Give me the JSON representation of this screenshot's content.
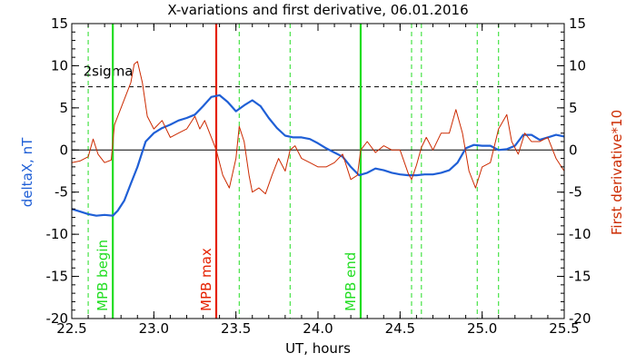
{
  "chart_data": {
    "type": "line",
    "title": "X-variations and first derivative, 06.01.2016",
    "xlabel": "UT, hours",
    "ylabel_left": "deltaX, nT",
    "ylabel_right": "First derivative*10",
    "xlim": [
      22.5,
      25.5
    ],
    "ylim": [
      -20,
      15
    ],
    "x_ticks": [
      22.5,
      23.0,
      23.5,
      24.0,
      24.5,
      25.0,
      25.5
    ],
    "x_tick_labels": [
      "22.5",
      "23.0",
      "23.5",
      "24.0",
      "24.5",
      "25.0",
      "25.5"
    ],
    "y_ticks": [
      15,
      10,
      5,
      0,
      -5,
      -10,
      -15,
      -20
    ],
    "y_tick_labels": [
      "15",
      "10",
      "5",
      "0",
      "-5",
      "-10",
      "-15",
      "-20"
    ],
    "threshold": {
      "label": "2sigma",
      "value": 7.5
    },
    "colors": {
      "deltaX": "#1f5fd6",
      "derivative": "#cc2a00",
      "mpb_begin_end": "#22dd22",
      "mpb_max": "#e52000",
      "dashed_lines": "#22dd22"
    },
    "vertical_markers": [
      {
        "label": "MPB begin",
        "x": 22.75,
        "color": "#22dd22"
      },
      {
        "label": "MPB max",
        "x": 23.38,
        "color": "#e52000"
      },
      {
        "label": "MPB end",
        "x": 24.26,
        "color": "#22dd22"
      }
    ],
    "dashed_verticals": [
      22.6,
      23.52,
      23.83,
      24.57,
      24.63,
      24.97,
      25.1
    ],
    "series": [
      {
        "name": "deltaX",
        "x": [
          22.5,
          22.55,
          22.6,
          22.65,
          22.7,
          22.75,
          22.78,
          22.82,
          22.86,
          22.9,
          22.95,
          23.0,
          23.05,
          23.1,
          23.15,
          23.2,
          23.25,
          23.3,
          23.35,
          23.4,
          23.45,
          23.5,
          23.55,
          23.6,
          23.65,
          23.7,
          23.75,
          23.8,
          23.85,
          23.9,
          23.95,
          24.0,
          24.05,
          24.1,
          24.15,
          24.2,
          24.25,
          24.3,
          24.35,
          24.4,
          24.45,
          24.5,
          24.55,
          24.6,
          24.65,
          24.7,
          24.75,
          24.8,
          24.85,
          24.9,
          24.95,
          25.0,
          25.05,
          25.1,
          25.15,
          25.2,
          25.25,
          25.3,
          25.35,
          25.4,
          25.45,
          25.5
        ],
        "y": [
          -7.0,
          -7.3,
          -7.6,
          -7.8,
          -7.7,
          -7.8,
          -7.2,
          -6.0,
          -4.0,
          -2.0,
          1.0,
          2.0,
          2.6,
          3.0,
          3.5,
          3.8,
          4.2,
          5.2,
          6.3,
          6.5,
          5.7,
          4.6,
          5.3,
          5.9,
          5.2,
          3.8,
          2.6,
          1.7,
          1.5,
          1.5,
          1.3,
          0.8,
          0.2,
          -0.3,
          -0.8,
          -2.0,
          -3.0,
          -2.7,
          -2.2,
          -2.4,
          -2.7,
          -2.9,
          -3.0,
          -3.0,
          -2.9,
          -2.9,
          -2.7,
          -2.4,
          -1.5,
          0.2,
          0.6,
          0.5,
          0.5,
          0.0,
          0.1,
          0.5,
          1.8,
          1.8,
          1.2,
          1.5,
          1.8,
          1.6
        ]
      },
      {
        "name": "First derivative*10",
        "x": [
          22.5,
          22.55,
          22.6,
          22.63,
          22.66,
          22.7,
          22.74,
          22.76,
          22.8,
          22.83,
          22.86,
          22.88,
          22.9,
          22.93,
          22.96,
          23.0,
          23.05,
          23.1,
          23.15,
          23.2,
          23.25,
          23.28,
          23.31,
          23.35,
          23.38,
          23.42,
          23.46,
          23.5,
          23.52,
          23.55,
          23.58,
          23.6,
          23.64,
          23.68,
          23.72,
          23.76,
          23.8,
          23.83,
          23.86,
          23.9,
          23.95,
          24.0,
          24.05,
          24.1,
          24.15,
          24.2,
          24.24,
          24.26,
          24.3,
          24.35,
          24.4,
          24.45,
          24.5,
          24.55,
          24.57,
          24.6,
          24.63,
          24.66,
          24.7,
          24.75,
          24.8,
          24.84,
          24.88,
          24.92,
          24.96,
          25.0,
          25.05,
          25.1,
          25.15,
          25.18,
          25.22,
          25.26,
          25.3,
          25.35,
          25.4,
          25.45,
          25.5
        ],
        "y": [
          -1.5,
          -1.3,
          -0.8,
          1.3,
          -0.5,
          -1.5,
          -1.2,
          3.0,
          5.0,
          6.5,
          8.0,
          10.2,
          10.5,
          8.0,
          4.0,
          2.5,
          3.5,
          1.5,
          2.0,
          2.5,
          4.0,
          2.5,
          3.5,
          1.5,
          0.0,
          -3.0,
          -4.5,
          -1.0,
          2.8,
          1.0,
          -3.0,
          -5.0,
          -4.5,
          -5.2,
          -3.0,
          -1.0,
          -2.5,
          0.0,
          0.5,
          -1.0,
          -1.5,
          -2.0,
          -2.0,
          -1.5,
          -0.5,
          -3.5,
          -3.0,
          0.0,
          1.0,
          -0.3,
          0.5,
          0.0,
          0.0,
          -2.8,
          -3.5,
          -1.8,
          0.3,
          1.5,
          0.0,
          2.0,
          2.0,
          4.8,
          2.0,
          -2.5,
          -4.5,
          -2.0,
          -1.5,
          2.5,
          4.2,
          1.0,
          -0.5,
          2.0,
          1.0,
          1.0,
          1.5,
          -1.0,
          -2.5
        ]
      }
    ]
  }
}
